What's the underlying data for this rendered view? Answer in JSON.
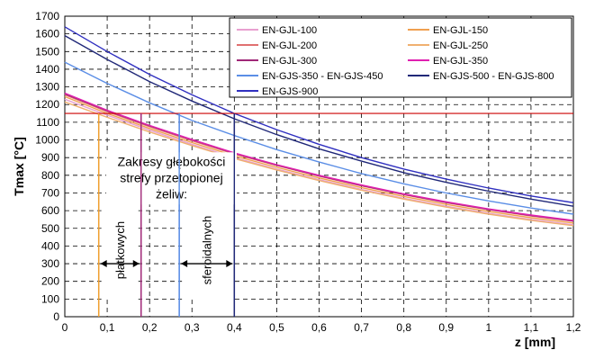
{
  "chart_data": {
    "type": "line",
    "ylabel": "Tmax [°C]",
    "xlabel": "z [mm]",
    "xlim": [
      0,
      1.2
    ],
    "ylim": [
      0,
      1700
    ],
    "x_ticks": [
      "0",
      "0,1",
      "0,2",
      "0,3",
      "0,4",
      "0,5",
      "0,6",
      "0,7",
      "0,8",
      "0,9",
      "1",
      "1,1",
      "1,2"
    ],
    "y_ticks": [
      "0",
      "100",
      "200",
      "300",
      "400",
      "500",
      "600",
      "700",
      "800",
      "900",
      "1000",
      "1100",
      "1200",
      "1300",
      "1400",
      "1500",
      "1600",
      "1700"
    ],
    "grid": true,
    "legend_position": "top-right",
    "x": [
      0,
      0.1,
      0.2,
      0.3,
      0.4,
      0.5,
      0.6,
      0.7,
      0.8,
      0.9,
      1.0,
      1.1,
      1.2
    ],
    "series": [
      {
        "name": "EN-GJL-100",
        "color": "#e8a0d0",
        "values": [
          1230,
          1140,
          1055,
          975,
          900,
          835,
          775,
          720,
          670,
          625,
          585,
          550,
          520
        ]
      },
      {
        "name": "EN-GJL-150",
        "color": "#f0a050",
        "values": [
          1245,
          1150,
          1065,
          985,
          910,
          845,
          785,
          730,
          680,
          635,
          595,
          560,
          530
        ]
      },
      {
        "name": "EN-GJL-200",
        "color": "#e07070",
        "values": [
          1255,
          1160,
          1075,
          995,
          920,
          855,
          795,
          740,
          690,
          645,
          605,
          570,
          540
        ]
      },
      {
        "name": "EN-GJL-250",
        "color": "#f0b070",
        "values": [
          1215,
          1128,
          1045,
          968,
          895,
          830,
          770,
          715,
          665,
          620,
          580,
          545,
          515
        ]
      },
      {
        "name": "EN-GJL-300",
        "color": "#a02878",
        "values": [
          1260,
          1165,
          1080,
          1000,
          925,
          858,
          797,
          742,
          692,
          647,
          607,
          572,
          542
        ]
      },
      {
        "name": "EN-GJL-350",
        "color": "#e020b0",
        "values": [
          1265,
          1168,
          1082,
          1002,
          927,
          860,
          800,
          745,
          695,
          650,
          610,
          575,
          545
        ]
      },
      {
        "name": "EN-GJS-350 - EN-GJS-450",
        "color": "#5b8ee6",
        "values": [
          1440,
          1320,
          1210,
          1110,
          1025,
          945,
          875,
          810,
          752,
          700,
          655,
          615,
          580
        ]
      },
      {
        "name": "EN-GJS-500 - EN-GJS-800",
        "color": "#202878",
        "values": [
          1590,
          1455,
          1330,
          1220,
          1120,
          1030,
          950,
          880,
          815,
          760,
          710,
          665,
          625
        ]
      },
      {
        "name": "EN-GJS-900",
        "color": "#3030c0",
        "values": [
          1640,
          1500,
          1370,
          1255,
          1150,
          1058,
          975,
          900,
          835,
          778,
          728,
          683,
          645
        ]
      }
    ],
    "hline": {
      "y": 1150,
      "color": "#cc0000"
    },
    "vlines": [
      {
        "x": 0.08,
        "color": "#f0a030"
      },
      {
        "x": 0.18,
        "color": "#a02878"
      },
      {
        "x": 0.27,
        "color": "#5b8ee6"
      },
      {
        "x": 0.4,
        "color": "#202878"
      }
    ],
    "annotation": {
      "lines": [
        "Zakresy głębokości",
        "strefy przetopionej",
        "żeliw:"
      ]
    },
    "ranges": [
      {
        "label": "płatkowych",
        "x_start": 0.08,
        "x_end": 0.18,
        "y": 300
      },
      {
        "label": "sferoidalnych",
        "x_start": 0.27,
        "x_end": 0.4,
        "y": 300
      }
    ]
  }
}
